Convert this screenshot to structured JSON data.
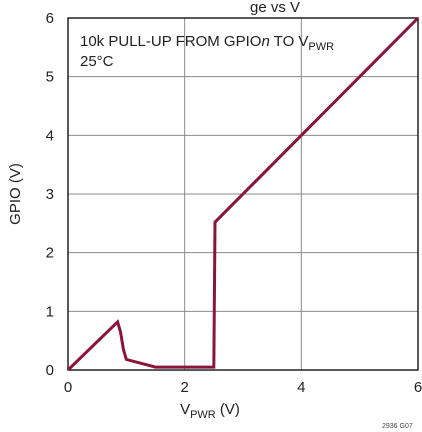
{
  "chart_data": {
    "type": "line",
    "title_fragment": "ge vs V",
    "xlabel": "V",
    "xlabel_sub": "PWR",
    "xlabel_unit": " (V)",
    "ylabel": "GPIO (V)",
    "xlim": [
      0,
      6
    ],
    "ylim": [
      0,
      6
    ],
    "x_ticks": [
      "0",
      "2",
      "4",
      "6"
    ],
    "y_ticks": [
      "0",
      "1",
      "2",
      "3",
      "4",
      "5",
      "6"
    ],
    "grid": true,
    "annotation_line1_prefix": "10k PULL-UP FROM GPIO",
    "annotation_line1_italic": "n",
    "annotation_line1_mid": " TO V",
    "annotation_line1_sub": "PWR",
    "annotation_line2": "25°C",
    "figure_code": "2936 G07",
    "line_color": "#8b1538",
    "series": [
      {
        "x": [
          0,
          0.85,
          0.9,
          0.95,
          1.0,
          1.5,
          2.0,
          2.5,
          2.52,
          6.0
        ],
        "y": [
          0,
          0.82,
          0.65,
          0.35,
          0.18,
          0.05,
          0.05,
          0.05,
          2.52,
          6.0
        ]
      }
    ]
  }
}
